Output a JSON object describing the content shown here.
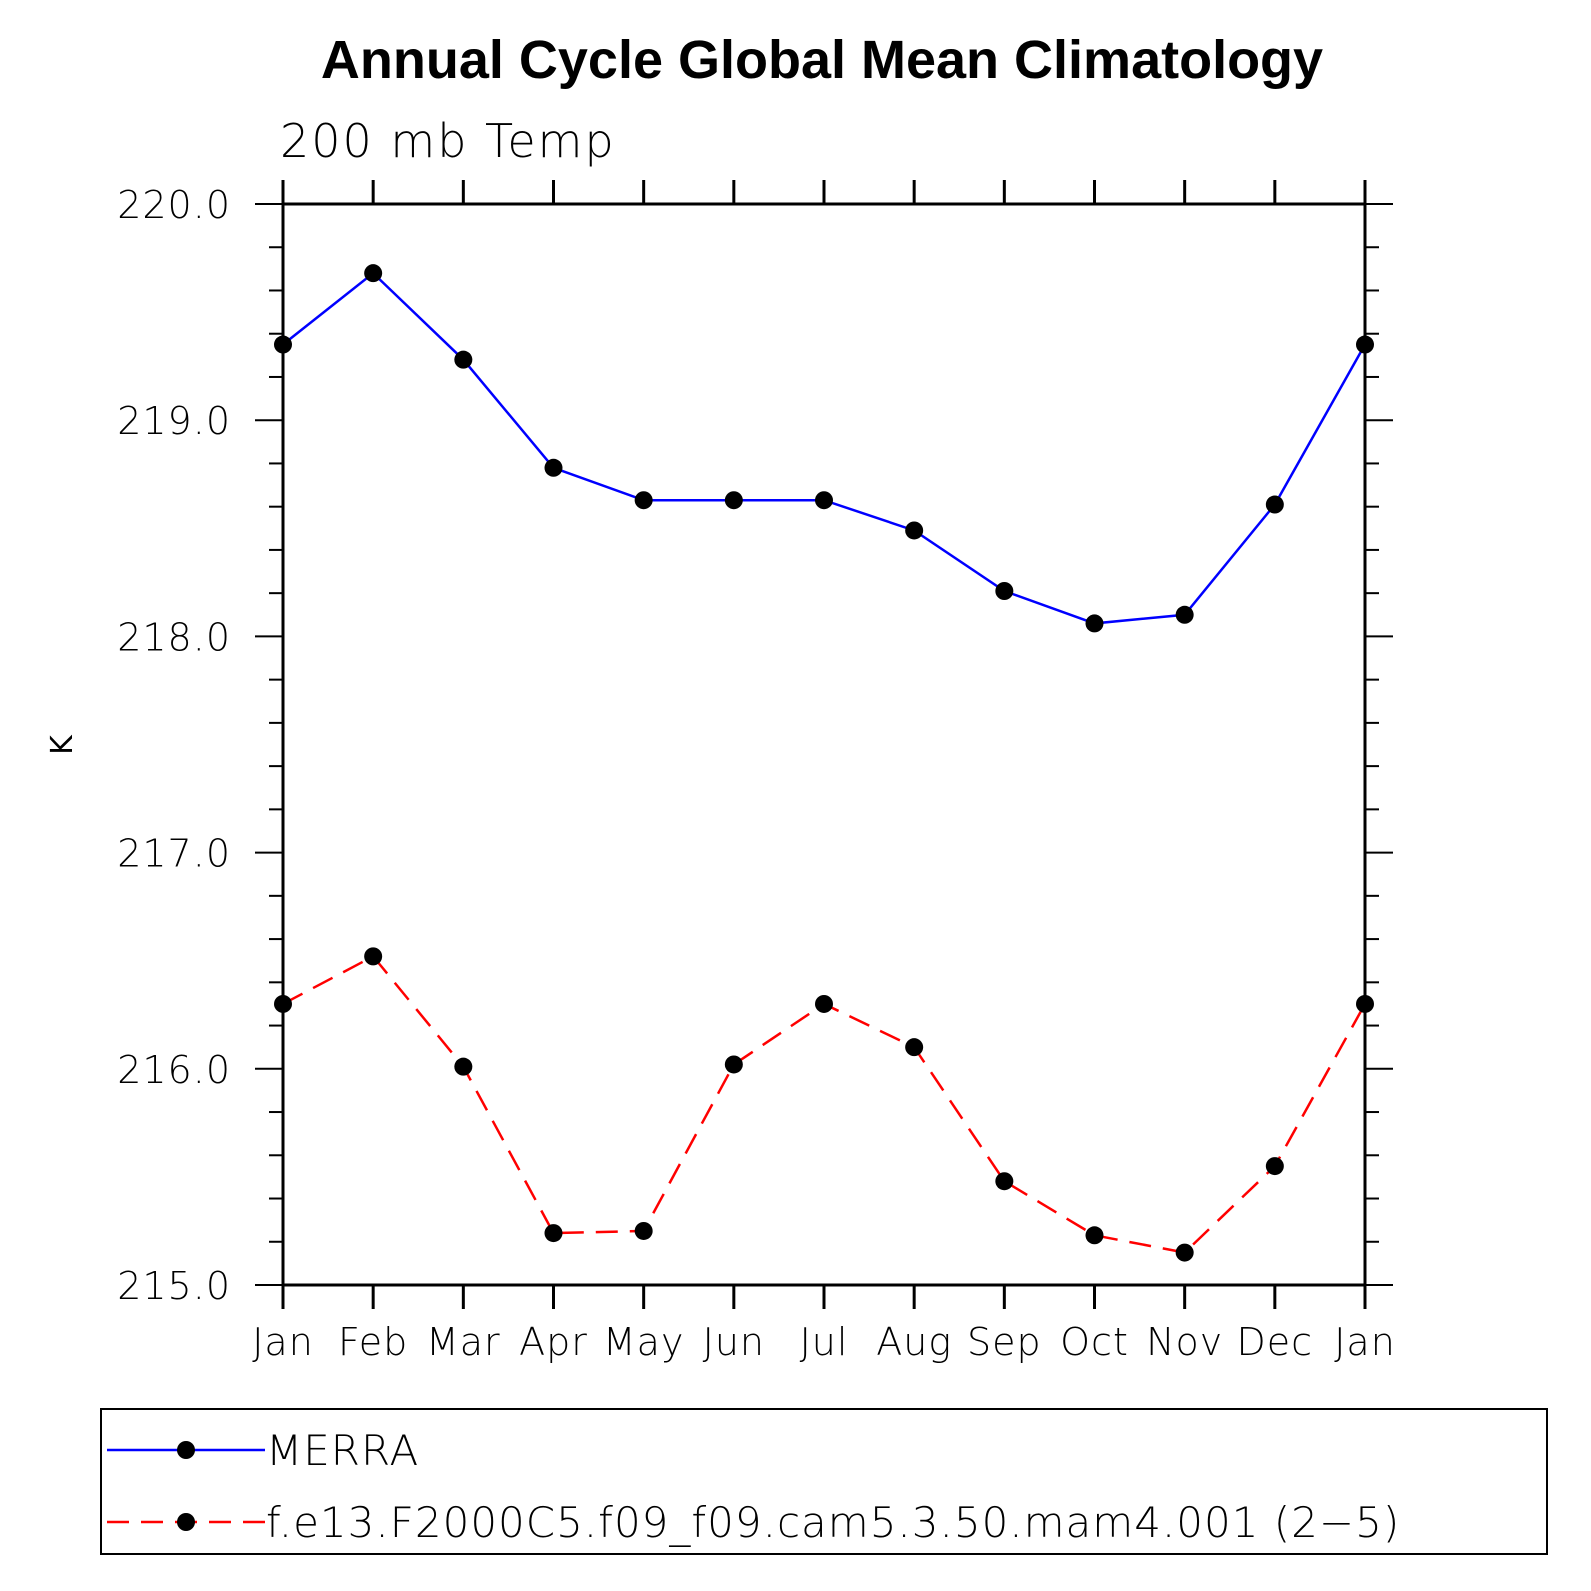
{
  "chart_data": {
    "type": "line",
    "title": "Annual Cycle Global Mean Climatology",
    "subtitle": "200 mb Temp",
    "ylabel": "K",
    "xlabel": "",
    "categories": [
      "Jan",
      "Feb",
      "Mar",
      "Apr",
      "May",
      "Jun",
      "Jul",
      "Aug",
      "Sep",
      "Oct",
      "Nov",
      "Dec",
      "Jan"
    ],
    "ylim": [
      215.0,
      220.0
    ],
    "yticks": [
      "215.0",
      "216.0",
      "217.0",
      "218.0",
      "219.0",
      "220.0"
    ],
    "grid": false,
    "legend_placement": "bottom",
    "series": [
      {
        "name": "MERRA",
        "color": "#0000ff",
        "dash": "solid",
        "values": [
          219.35,
          219.68,
          219.28,
          218.78,
          218.63,
          218.63,
          218.63,
          218.49,
          218.21,
          218.06,
          218.1,
          218.61,
          219.35
        ]
      },
      {
        "name": "f.e13.F2000C5.f09_f09.cam5.3.50.mam4.001 (2−5)",
        "color": "#ff0000",
        "dash": "dashed",
        "values": [
          216.3,
          216.52,
          216.01,
          215.24,
          215.25,
          216.02,
          216.3,
          216.1,
          215.48,
          215.23,
          215.15,
          215.55,
          216.3
        ]
      }
    ],
    "marker_color": "#000000"
  }
}
